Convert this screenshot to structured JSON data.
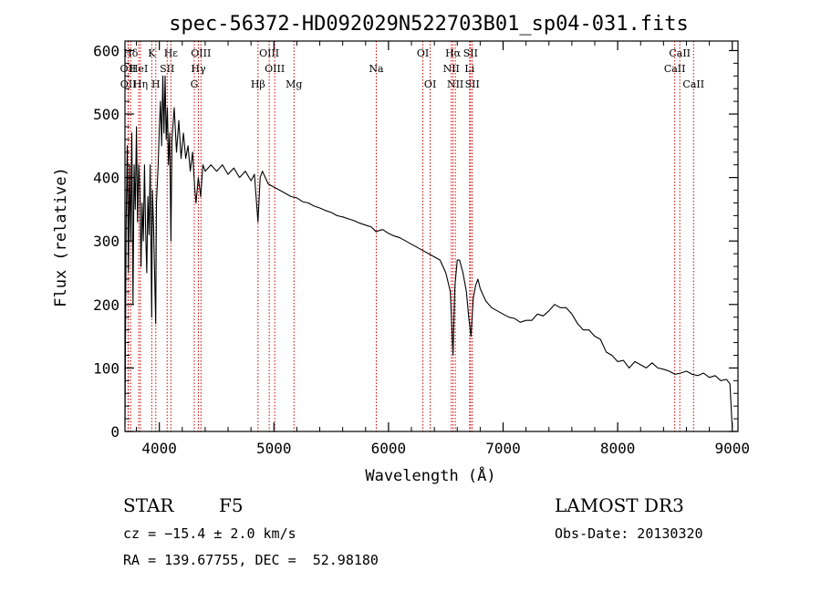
{
  "chart_data": {
    "type": "line",
    "title": "spec-56372-HD092029N522703B01_sp04-031.fits",
    "xlabel": "Wavelength (Å)",
    "ylabel": "Flux (relative)",
    "xlim": [
      3700,
      9050
    ],
    "ylim": [
      0,
      615
    ],
    "x_ticks": [
      4000,
      5000,
      6000,
      7000,
      8000,
      9000
    ],
    "y_ticks": [
      0,
      100,
      200,
      300,
      400,
      500,
      600
    ],
    "grid": false,
    "line_color": "#000000",
    "marker_color": "#cc0000",
    "series": [
      {
        "values": [
          [
            3700,
            10
          ],
          [
            3710,
            330
          ],
          [
            3720,
            450
          ],
          [
            3730,
            250
          ],
          [
            3740,
            420
          ],
          [
            3750,
            300
          ],
          [
            3760,
            470
          ],
          [
            3770,
            200
          ],
          [
            3780,
            420
          ],
          [
            3790,
            350
          ],
          [
            3800,
            480
          ],
          [
            3810,
            330
          ],
          [
            3820,
            420
          ],
          [
            3830,
            380
          ],
          [
            3840,
            260
          ],
          [
            3850,
            360
          ],
          [
            3860,
            300
          ],
          [
            3870,
            420
          ],
          [
            3880,
            320
          ],
          [
            3890,
            250
          ],
          [
            3900,
            370
          ],
          [
            3910,
            310
          ],
          [
            3920,
            420
          ],
          [
            3933,
            180
          ],
          [
            3940,
            380
          ],
          [
            3950,
            320
          ],
          [
            3968,
            170
          ],
          [
            3975,
            360
          ],
          [
            3990,
            420
          ],
          [
            4000,
            480
          ],
          [
            4010,
            520
          ],
          [
            4020,
            450
          ],
          [
            4030,
            560
          ],
          [
            4040,
            470
          ],
          [
            4050,
            560
          ],
          [
            4060,
            460
          ],
          [
            4070,
            510
          ],
          [
            4080,
            420
          ],
          [
            4090,
            470
          ],
          [
            4101,
            300
          ],
          [
            4110,
            460
          ],
          [
            4130,
            510
          ],
          [
            4150,
            440
          ],
          [
            4170,
            490
          ],
          [
            4190,
            430
          ],
          [
            4210,
            470
          ],
          [
            4230,
            430
          ],
          [
            4250,
            450
          ],
          [
            4270,
            410
          ],
          [
            4290,
            440
          ],
          [
            4310,
            380
          ],
          [
            4320,
            360
          ],
          [
            4340,
            400
          ],
          [
            4361,
            370
          ],
          [
            4380,
            420
          ],
          [
            4400,
            410
          ],
          [
            4450,
            420
          ],
          [
            4500,
            410
          ],
          [
            4550,
            420
          ],
          [
            4600,
            405
          ],
          [
            4650,
            415
          ],
          [
            4700,
            400
          ],
          [
            4750,
            410
          ],
          [
            4800,
            395
          ],
          [
            4830,
            405
          ],
          [
            4861,
            330
          ],
          [
            4880,
            400
          ],
          [
            4900,
            410
          ],
          [
            4950,
            390
          ],
          [
            5000,
            385
          ],
          [
            5050,
            380
          ],
          [
            5100,
            375
          ],
          [
            5150,
            370
          ],
          [
            5200,
            368
          ],
          [
            5250,
            362
          ],
          [
            5300,
            360
          ],
          [
            5350,
            355
          ],
          [
            5400,
            352
          ],
          [
            5450,
            348
          ],
          [
            5500,
            345
          ],
          [
            5550,
            340
          ],
          [
            5600,
            338
          ],
          [
            5650,
            335
          ],
          [
            5700,
            332
          ],
          [
            5750,
            328
          ],
          [
            5800,
            325
          ],
          [
            5850,
            322
          ],
          [
            5890,
            315
          ],
          [
            5950,
            318
          ],
          [
            6000,
            312
          ],
          [
            6050,
            308
          ],
          [
            6100,
            305
          ],
          [
            6150,
            300
          ],
          [
            6200,
            295
          ],
          [
            6250,
            290
          ],
          [
            6300,
            285
          ],
          [
            6350,
            280
          ],
          [
            6400,
            275
          ],
          [
            6450,
            270
          ],
          [
            6500,
            250
          ],
          [
            6540,
            220
          ],
          [
            6563,
            120
          ],
          [
            6580,
            230
          ],
          [
            6600,
            270
          ],
          [
            6620,
            270
          ],
          [
            6650,
            250
          ],
          [
            6680,
            220
          ],
          [
            6700,
            180
          ],
          [
            6720,
            150
          ],
          [
            6740,
            210
          ],
          [
            6760,
            230
          ],
          [
            6780,
            240
          ],
          [
            6800,
            225
          ],
          [
            6850,
            205
          ],
          [
            6900,
            195
          ],
          [
            6950,
            190
          ],
          [
            7000,
            185
          ],
          [
            7050,
            180
          ],
          [
            7100,
            178
          ],
          [
            7150,
            172
          ],
          [
            7200,
            175
          ],
          [
            7250,
            175
          ],
          [
            7300,
            185
          ],
          [
            7350,
            182
          ],
          [
            7400,
            190
          ],
          [
            7450,
            200
          ],
          [
            7500,
            195
          ],
          [
            7550,
            195
          ],
          [
            7600,
            185
          ],
          [
            7650,
            170
          ],
          [
            7700,
            160
          ],
          [
            7750,
            160
          ],
          [
            7800,
            150
          ],
          [
            7850,
            145
          ],
          [
            7900,
            125
          ],
          [
            7950,
            120
          ],
          [
            8000,
            110
          ],
          [
            8050,
            112
          ],
          [
            8100,
            100
          ],
          [
            8150,
            110
          ],
          [
            8200,
            105
          ],
          [
            8250,
            100
          ],
          [
            8300,
            108
          ],
          [
            8350,
            100
          ],
          [
            8400,
            98
          ],
          [
            8450,
            95
          ],
          [
            8500,
            90
          ],
          [
            8550,
            92
          ],
          [
            8600,
            95
          ],
          [
            8650,
            90
          ],
          [
            8700,
            88
          ],
          [
            8750,
            92
          ],
          [
            8800,
            85
          ],
          [
            8850,
            88
          ],
          [
            8900,
            80
          ],
          [
            8950,
            82
          ],
          [
            8980,
            75
          ],
          [
            9000,
            5
          ]
        ]
      }
    ],
    "lines": [
      {
        "label": "Hδ",
        "x": 3750,
        "row": 1
      },
      {
        "label": "K",
        "x": 3934,
        "row": 1
      },
      {
        "label": "Hε",
        "x": 4101,
        "row": 1
      },
      {
        "label": "OII",
        "x": 3727,
        "row": 2
      },
      {
        "label": "HeI",
        "x": 3820,
        "row": 2
      },
      {
        "label": "SII",
        "x": 4068,
        "row": 2
      },
      {
        "label": "OII",
        "x": 3729,
        "row": 3
      },
      {
        "label": "Hη",
        "x": 3835,
        "row": 3
      },
      {
        "label": "H",
        "x": 3969,
        "row": 3
      },
      {
        "label": "OIII",
        "x": 4363,
        "row": 1
      },
      {
        "label": "Hγ",
        "x": 4341,
        "row": 2
      },
      {
        "label": "G",
        "x": 4305,
        "row": 3
      },
      {
        "label": "OIII",
        "x": 4959,
        "row": 1
      },
      {
        "label": "OIII",
        "x": 5007,
        "row": 2
      },
      {
        "label": "Hβ",
        "x": 4861,
        "row": 3
      },
      {
        "label": "Mg",
        "x": 5175,
        "row": 3
      },
      {
        "label": "Na",
        "x": 5893,
        "row": 2
      },
      {
        "label": "OI",
        "x": 6300,
        "row": 1
      },
      {
        "label": "OI",
        "x": 6364,
        "row": 3
      },
      {
        "label": "Hα",
        "x": 6563,
        "row": 1
      },
      {
        "label": "SII",
        "x": 6716,
        "row": 1
      },
      {
        "label": "NII",
        "x": 6548,
        "row": 2
      },
      {
        "label": "Li",
        "x": 6708,
        "row": 2
      },
      {
        "label": "NII",
        "x": 6583,
        "row": 3
      },
      {
        "label": "SII",
        "x": 6731,
        "row": 3
      },
      {
        "label": "CaII",
        "x": 8542,
        "row": 1
      },
      {
        "label": "CaII",
        "x": 8498,
        "row": 2
      },
      {
        "label": "CaII",
        "x": 8662,
        "row": 3
      }
    ]
  },
  "info": {
    "object_type": "STAR",
    "subclass": "F5",
    "survey": "LAMOST DR3",
    "redshift": "cz = −15.4 ± 2.0 km/s",
    "obs_date": "Obs-Date: 20130320",
    "coords": "RA = 139.67755, DEC =  52.98180"
  }
}
